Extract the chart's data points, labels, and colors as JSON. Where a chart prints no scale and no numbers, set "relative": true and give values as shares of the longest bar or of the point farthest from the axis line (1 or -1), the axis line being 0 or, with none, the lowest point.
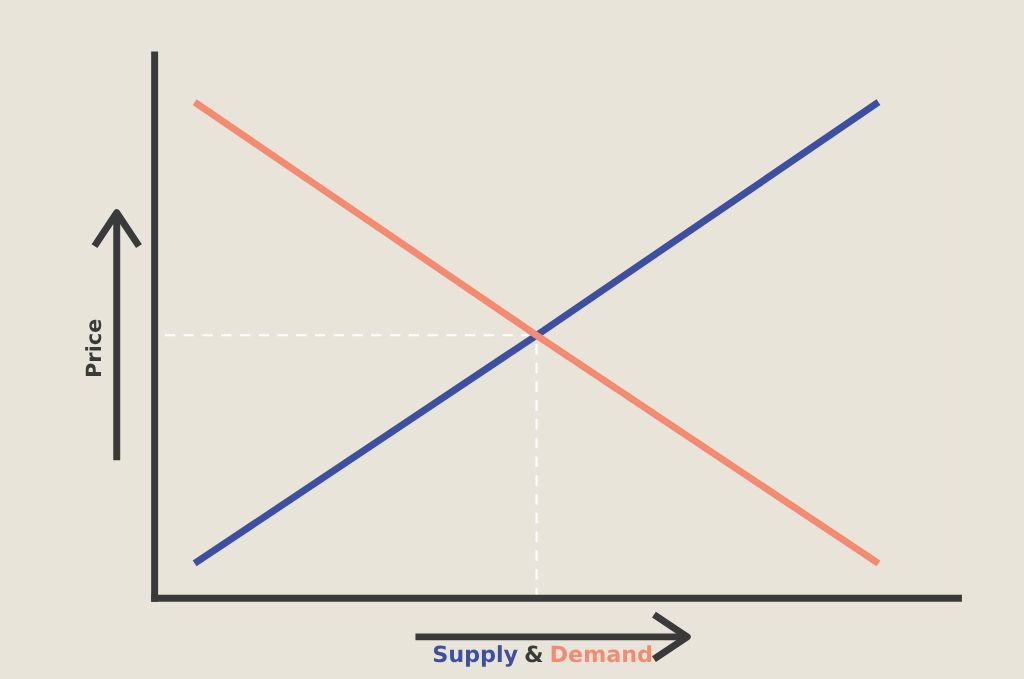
{
  "chart_data": {
    "type": "line",
    "relative": true,
    "xlabel": "&",
    "ylabel": "Price",
    "categories": [
      null,
      null,
      null
    ],
    "series": [
      {
        "name": "Supply",
        "color": "#3d4fa3",
        "values": [
          0.07,
          0.53,
          1
        ]
      },
      {
        "name": "Demand",
        "color": "#f48b70",
        "values": [
          1,
          0.53,
          0.07
        ]
      }
    ],
    "ref_lines": [
      {
        "axis": "y",
        "value": 0.53,
        "color": "#ffffff",
        "line_style": "dashed"
      }
    ],
    "legend": false,
    "marker": "none",
    "line_style": "solid"
  }
}
